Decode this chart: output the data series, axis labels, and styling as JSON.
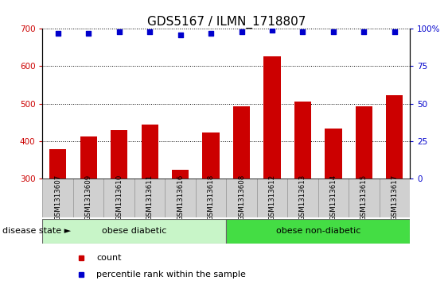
{
  "title": "GDS5167 / ILMN_1718807",
  "samples": [
    "GSM1313607",
    "GSM1313609",
    "GSM1313610",
    "GSM1313611",
    "GSM1313616",
    "GSM1313618",
    "GSM1313608",
    "GSM1313612",
    "GSM1313613",
    "GSM1313614",
    "GSM1313615",
    "GSM1313617"
  ],
  "counts": [
    378,
    412,
    430,
    445,
    323,
    424,
    494,
    627,
    505,
    433,
    492,
    522
  ],
  "percentiles": [
    97,
    97,
    98,
    98,
    96,
    97,
    98,
    99,
    98,
    98,
    98,
    98
  ],
  "bar_color": "#cc0000",
  "dot_color": "#0000cc",
  "ylim_left": [
    300,
    700
  ],
  "ylim_right": [
    0,
    100
  ],
  "yticks_left": [
    300,
    400,
    500,
    600,
    700
  ],
  "yticks_right": [
    0,
    25,
    50,
    75,
    100
  ],
  "groups": [
    {
      "label": "obese diabetic",
      "start": 0,
      "end": 6,
      "color": "#c8f5c8"
    },
    {
      "label": "obese non-diabetic",
      "start": 6,
      "end": 12,
      "color": "#44dd44"
    }
  ],
  "group_label_prefix": "disease state",
  "legend_count_label": "count",
  "legend_percentile_label": "percentile rank within the sample",
  "tick_area_color": "#d0d0d0",
  "title_fontsize": 11,
  "tick_fontsize": 7.5,
  "bar_bottom": 300
}
